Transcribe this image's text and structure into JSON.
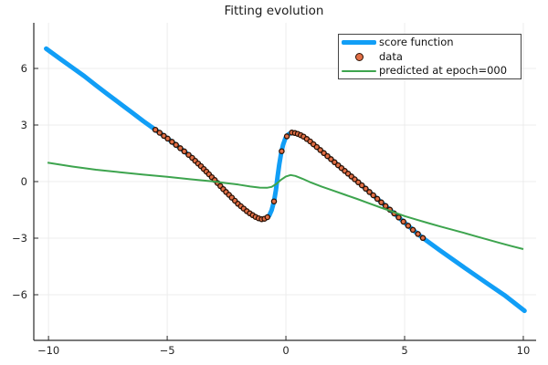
{
  "title": "Fitting evolution",
  "legend": {
    "items": [
      {
        "label": "score function",
        "swatch": "line",
        "color": "#119EF6",
        "thickness": 4.5
      },
      {
        "label": "data",
        "swatch": "marker",
        "color": "#E26F46",
        "stroke": "#2B1205"
      },
      {
        "label": "predicted at epoch=000",
        "swatch": "line",
        "color": "#3DA44E",
        "thickness": 2
      }
    ]
  },
  "chart_data": {
    "type": "line",
    "title": "Fitting evolution",
    "xlabel": "",
    "ylabel": "",
    "xlim": [
      -10.62,
      10.54
    ],
    "ylim": [
      -8.42,
      8.42
    ],
    "grid": true,
    "legend_position": "top-right",
    "colors": {
      "score": "#119EF6",
      "data_fill": "#E26F46",
      "data_stroke": "#2B1205",
      "predicted": "#3DA44E",
      "grid": "#ECECEC",
      "axis": "#2A2A2A",
      "tick_label": "#252525"
    },
    "xticks": {
      "values": [
        -10,
        -5,
        0,
        5,
        10
      ],
      "labels": [
        "−10",
        "−5",
        "0",
        "5",
        "10"
      ]
    },
    "yticks": {
      "values": [
        -6,
        -3,
        0,
        3,
        6
      ],
      "labels": [
        "−6",
        "−3",
        "0",
        "3",
        "6"
      ]
    },
    "series": [
      {
        "name": "score function",
        "type": "line",
        "color": "#119EF6",
        "width": 5,
        "points": [
          [
            -10.1,
            7.05
          ],
          [
            -9.5,
            6.5
          ],
          [
            -9,
            6.05
          ],
          [
            -8.5,
            5.6
          ],
          [
            -8,
            5.1
          ],
          [
            -7.5,
            4.62
          ],
          [
            -7,
            4.15
          ],
          [
            -6.5,
            3.68
          ],
          [
            -6,
            3.2
          ],
          [
            -5.5,
            2.75
          ],
          [
            -5,
            2.3
          ],
          [
            -4.5,
            1.82
          ],
          [
            -4,
            1.32
          ],
          [
            -3.5,
            0.72
          ],
          [
            -3,
            0.08
          ],
          [
            -2.5,
            -0.58
          ],
          [
            -2,
            -1.2
          ],
          [
            -1.6,
            -1.62
          ],
          [
            -1.3,
            -1.86
          ],
          [
            -1.05,
            -2.0
          ],
          [
            -0.85,
            -1.96
          ],
          [
            -0.7,
            -1.8
          ],
          [
            -0.6,
            -1.52
          ],
          [
            -0.5,
            -1.05
          ],
          [
            -0.42,
            -0.45
          ],
          [
            -0.35,
            0.25
          ],
          [
            -0.28,
            0.92
          ],
          [
            -0.2,
            1.5
          ],
          [
            -0.12,
            1.95
          ],
          [
            -0.02,
            2.3
          ],
          [
            0.1,
            2.5
          ],
          [
            0.25,
            2.6
          ],
          [
            0.45,
            2.56
          ],
          [
            0.7,
            2.42
          ],
          [
            1,
            2.15
          ],
          [
            1.5,
            1.62
          ],
          [
            2,
            1.08
          ],
          [
            2.75,
            0.28
          ],
          [
            2.9,
            0.12
          ],
          [
            3.2,
            -0.2
          ],
          [
            3.6,
            -0.64
          ],
          [
            4,
            -1.08
          ],
          [
            4.5,
            -1.62
          ],
          [
            5,
            -2.18
          ],
          [
            5.5,
            -2.72
          ],
          [
            5.8,
            -3.02
          ],
          [
            6.5,
            -3.66
          ],
          [
            7.5,
            -4.55
          ],
          [
            8.5,
            -5.42
          ],
          [
            9.2,
            -6.02
          ],
          [
            10.05,
            -6.85
          ]
        ]
      },
      {
        "name": "data",
        "type": "scatter",
        "color": "#E26F46",
        "stroke": "#2B1205",
        "marker_radius": 2.6,
        "lies_on": "score function",
        "x": [
          -5.5,
          -5.32,
          -5.14,
          -4.98,
          -4.8,
          -4.63,
          -4.45,
          -4.28,
          -4.1,
          -3.95,
          -3.82,
          -3.7,
          -3.58,
          -3.46,
          -3.35,
          -3.24,
          -3.12,
          -3.0,
          -2.88,
          -2.76,
          -2.64,
          -2.52,
          -2.4,
          -2.28,
          -2.15,
          -2.02,
          -1.9,
          -1.78,
          -1.65,
          -1.52,
          -1.4,
          -1.28,
          -1.15,
          -1.02,
          -0.9,
          -0.78,
          -0.5,
          -0.18,
          0.04,
          0.25,
          0.38,
          0.5,
          0.62,
          0.74,
          0.88,
          1.02,
          1.16,
          1.3,
          1.45,
          1.6,
          1.75,
          1.9,
          2.05,
          2.2,
          2.34,
          2.48,
          2.62,
          2.76,
          2.9,
          3.05,
          3.2,
          3.36,
          3.52,
          3.68,
          3.85,
          4.02,
          4.2,
          4.38,
          4.56,
          4.75,
          4.95,
          5.15,
          5.35,
          5.56,
          5.77
        ]
      },
      {
        "name": "predicted at epoch=000",
        "type": "line",
        "color": "#3DA44E",
        "width": 2,
        "points": [
          [
            -10.04,
            1.0
          ],
          [
            -9,
            0.8
          ],
          [
            -8,
            0.63
          ],
          [
            -7,
            0.5
          ],
          [
            -6,
            0.37
          ],
          [
            -5,
            0.25
          ],
          [
            -4,
            0.12
          ],
          [
            -3,
            0.0
          ],
          [
            -2.5,
            -0.08
          ],
          [
            -2,
            -0.16
          ],
          [
            -1.5,
            -0.26
          ],
          [
            -1.1,
            -0.32
          ],
          [
            -0.8,
            -0.33
          ],
          [
            -0.6,
            -0.28
          ],
          [
            -0.4,
            -0.12
          ],
          [
            -0.2,
            0.1
          ],
          [
            0,
            0.27
          ],
          [
            0.2,
            0.35
          ],
          [
            0.4,
            0.3
          ],
          [
            0.7,
            0.15
          ],
          [
            1,
            -0.02
          ],
          [
            1.5,
            -0.26
          ],
          [
            2,
            -0.48
          ],
          [
            2.5,
            -0.7
          ],
          [
            3,
            -0.92
          ],
          [
            3.5,
            -1.15
          ],
          [
            4,
            -1.38
          ],
          [
            4.5,
            -1.6
          ],
          [
            5,
            -1.83
          ],
          [
            5.5,
            -2.02
          ],
          [
            6,
            -2.2
          ],
          [
            6.5,
            -2.38
          ],
          [
            7,
            -2.55
          ],
          [
            7.5,
            -2.72
          ],
          [
            8,
            -2.9
          ],
          [
            8.5,
            -3.08
          ],
          [
            9,
            -3.25
          ],
          [
            9.5,
            -3.42
          ],
          [
            10,
            -3.58
          ]
        ]
      }
    ]
  }
}
